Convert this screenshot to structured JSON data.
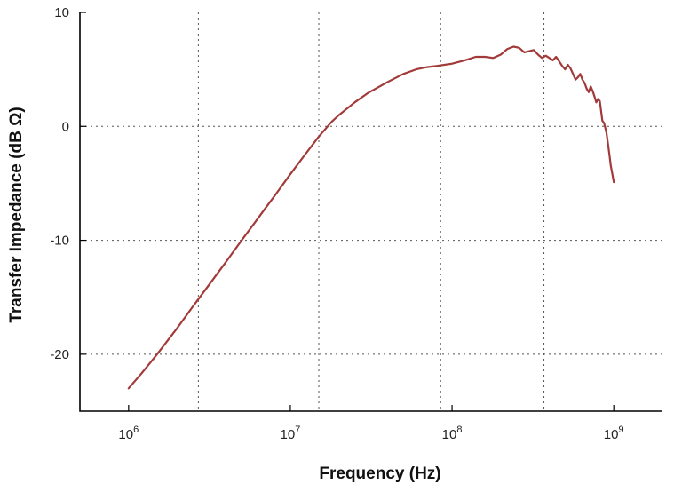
{
  "chart_data": {
    "type": "line",
    "title": "",
    "xlabel": "Frequency (Hz)",
    "ylabel": "Transfer Impedance (dB Ω)",
    "x_scale": "log",
    "xlim": [
      500000,
      2000000000
    ],
    "ylim": [
      -25,
      10
    ],
    "x_ticks": [
      {
        "value": 1000000,
        "base": "10",
        "exp": "6"
      },
      {
        "value": 10000000,
        "base": "10",
        "exp": "7"
      },
      {
        "value": 100000000,
        "base": "10",
        "exp": "8"
      },
      {
        "value": 1000000000,
        "base": "10",
        "exp": "9"
      }
    ],
    "y_ticks": [
      {
        "value": 10,
        "label": "10"
      },
      {
        "value": 0,
        "label": "0"
      },
      {
        "value": -10,
        "label": "-10"
      },
      {
        "value": -20,
        "label": "-20"
      }
    ],
    "x_grid": [
      2700000,
      15000000,
      85000000,
      370000000
    ],
    "y_grid": [
      0,
      -10,
      -20
    ],
    "grid": true,
    "legend": "none",
    "series": [
      {
        "color": "#a33a3a",
        "x": [
          1000000,
          1200000,
          1500000,
          2000000,
          2500000,
          3000000,
          4000000,
          5000000,
          6000000,
          7000000,
          8000000,
          10000000,
          12000000,
          15000000,
          18000000,
          20000000,
          25000000,
          30000000,
          40000000,
          50000000,
          60000000,
          70000000,
          80000000,
          100000000,
          120000000,
          140000000,
          160000000,
          180000000,
          200000000,
          220000000,
          240000000,
          260000000,
          280000000,
          300000000,
          320000000,
          340000000,
          360000000,
          380000000,
          400000000,
          420000000,
          440000000,
          460000000,
          480000000,
          500000000,
          520000000,
          540000000,
          560000000,
          580000000,
          600000000,
          620000000,
          640000000,
          660000000,
          680000000,
          700000000,
          720000000,
          740000000,
          760000000,
          780000000,
          800000000,
          820000000,
          850000000,
          870000000,
          900000000,
          920000000,
          940000000,
          960000000,
          980000000,
          1000000000
        ],
        "y": [
          -23.0,
          -21.7,
          -20.0,
          -17.7,
          -15.8,
          -14.3,
          -11.9,
          -10.0,
          -8.5,
          -7.2,
          -6.1,
          -4.2,
          -2.7,
          -0.9,
          0.4,
          1.0,
          2.1,
          2.9,
          3.9,
          4.6,
          5.0,
          5.2,
          5.3,
          5.5,
          5.8,
          6.1,
          6.1,
          6.0,
          6.3,
          6.8,
          7.0,
          6.9,
          6.5,
          6.6,
          6.7,
          6.3,
          6.0,
          6.2,
          6.0,
          5.8,
          6.1,
          5.7,
          5.3,
          5.0,
          5.4,
          5.1,
          4.6,
          4.1,
          4.3,
          4.6,
          4.1,
          3.8,
          3.3,
          3.0,
          3.5,
          3.1,
          2.6,
          2.1,
          2.4,
          2.2,
          0.5,
          0.3,
          -0.5,
          -1.5,
          -2.5,
          -3.5,
          -4.2,
          -4.9
        ]
      }
    ]
  }
}
